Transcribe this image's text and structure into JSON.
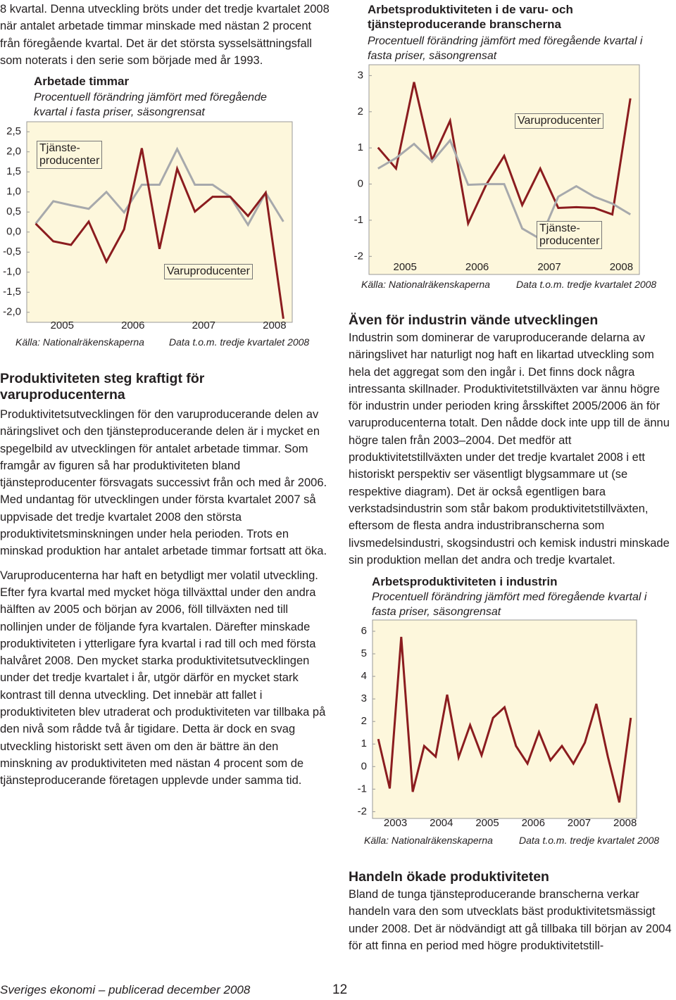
{
  "page": {
    "intro": "8 kvartal. Denna utveckling bröts under det tredje kvartalet 2008 när antalet arbetade timmar minskade med nästan 2 procent från föregående kvartal. Det är det största sysselsättningsfall som noterats i den serie som började med år 1993.",
    "sections": [
      {
        "heading": "Produktiviteten steg kraftigt för varuproducenterna",
        "paragraphs": [
          "Produktivitetsutvecklingen för den varuproducerande delen av näringslivet och den tjänsteproducerande delen är i mycket en spegelbild av utvecklingen för antalet arbetade timmar. Som framgår av figuren så har produktiviteten bland tjänsteproducenter försvagats successivt från och med år 2006. Med undantag för utvecklingen under första kvartalet 2007 så uppvisade det tredje kvartalet 2008 den största produktivitetsminskningen under hela perioden. Trots en minskad produktion har antalet arbetade timmar fortsatt att öka.",
          "Varuproducenterna har haft en betydligt mer volatil utveckling. Efter fyra kvartal med mycket höga tillväxttal under den andra hälften av 2005 och början av 2006, föll tillväxten ned till nollinjen under de följande fyra kvartalen. Därefter minskade produktiviteten i ytterligare fyra kvartal i rad till och med första halvåret 2008. Den mycket starka produktivitetsutvecklingen under det tredje kvartalet i år, utgör därför en mycket stark kontrast till denna utveckling. Det innebär att fallet i produktiviteten blev utraderat och produktiviteten var tillbaka på den nivå som rådde två år tigidare. Detta är dock en svag utveckling historiskt sett även om den är bättre än den minskning av produktiviteten med nästan 4 procent som de tjänsteproducerande företagen upplevde under samma tid."
        ]
      },
      {
        "heading": "Även för industrin vände utvecklingen",
        "paragraphs": [
          "Industrin som dominerar de varuproducerande delarna av näringslivet har naturligt nog haft en likartad utveckling som hela det aggregat som den ingår i. Det finns dock några intressanta skillnader. Produktivitetstillväxten var ännu högre för industrin under perioden kring årsskiftet 2005/2006 än för varuproducenterna totalt. Den nådde dock inte upp till de ännu högre talen från 2003–2004. Det medför att produktivitetstillväxten under det tredje kvartalet 2008 i ett historiskt perspektiv ser väsentligt blygsammare ut (se respektive diagram). Det är också egentligen bara verkstadsindustrin som står bakom produktivitetstillväxten, eftersom de flesta andra industribranscherna som livsmedelsindustri, skogsindustri och kemisk industri minskade sin produktion mellan det andra och tredje kvartalet."
        ]
      },
      {
        "heading": "Handeln ökade produktiviteten",
        "paragraphs": [
          "Bland de tunga tjänsteproducerande branscherna verkar handeln vara den som utvecklats bäst produktivitetsmässigt under 2008. Det är nödvändigt att gå tillbaka till början av 2004 för att finna en period med högre produktivitetstill-"
        ]
      }
    ],
    "footer": {
      "publication": "Sveriges ekonomi – publicerad december 2008",
      "page_number": "12"
    }
  },
  "chart_data": [
    {
      "type": "line",
      "title": "Arbetade timmar",
      "subtitle": "Procentuell förändring jämfört med föregående kvartal i fasta priser, säsongrensat",
      "source": "Källa: Nationalräkenskaperna",
      "note": "Data t.o.m. tredje kvartalet 2008",
      "categories": [
        null,
        "2005",
        null,
        null,
        null,
        "2006",
        null,
        null,
        null,
        "2007",
        null,
        null,
        null,
        "2008",
        null
      ],
      "series": [
        {
          "name": "Tjänste-\nproducenter",
          "color": "#a7a9ac",
          "values": [
            0.21,
            0.77,
            0.67,
            0.58,
            1.0,
            0.49,
            1.18,
            1.18,
            2.07,
            1.18,
            1.18,
            0.88,
            0.18,
            0.98,
            0.26
          ]
        },
        {
          "name": "Varuproducenter",
          "color": "#8b1c1f",
          "values": [
            0.21,
            -0.23,
            -0.32,
            0.26,
            -0.74,
            0.07,
            2.09,
            -0.42,
            1.58,
            0.51,
            0.88,
            0.88,
            0.4,
            0.98,
            -2.16
          ]
        }
      ],
      "ylim": [
        -2.25,
        2.75
      ],
      "yticks": [
        {
          "value": -2,
          "label": "-2,0"
        },
        {
          "value": -1.5,
          "label": "-1,5"
        },
        {
          "value": -1,
          "label": "-1,0"
        },
        {
          "value": -0.5,
          "label": "-0,5"
        },
        {
          "value": 0,
          "label": "0,0"
        },
        {
          "value": 0.5,
          "label": "0,5"
        },
        {
          "value": 1,
          "label": "1,0"
        },
        {
          "value": 1.5,
          "label": "1,5"
        },
        {
          "value": 2,
          "label": "2,0"
        },
        {
          "value": 2.5,
          "label": "2,5"
        }
      ]
    },
    {
      "type": "line",
      "title": "Arbetsproduktiviteten i de varu- och tjänsteproducerande branscherna",
      "subtitle": "Procentuell förändring jämfört med föregående kvartal i fasta priser, säsongrensat",
      "source": "Källa: Nationalräkenskaperna",
      "note": "Data t.o.m. tredje kvartalet 2008",
      "categories": [
        null,
        "2005",
        null,
        null,
        null,
        "2006",
        null,
        null,
        null,
        "2007",
        null,
        null,
        null,
        "2008",
        null
      ],
      "series": [
        {
          "name": "Varuproducenter",
          "color": "#8b1c1f",
          "values": [
            1.01,
            0.43,
            2.82,
            0.66,
            1.75,
            -1.09,
            -0.02,
            0.78,
            -0.58,
            0.43,
            -0.66,
            -0.64,
            -0.66,
            -0.84,
            2.37
          ]
        },
        {
          "name": "Tjänste-\nproducenter",
          "color": "#a7a9ac",
          "values": [
            0.43,
            0.72,
            1.11,
            0.62,
            1.21,
            -0.02,
            0,
            0,
            -1.23,
            -1.52,
            -0.35,
            -0.06,
            -0.35,
            -0.54,
            -0.84
          ]
        }
      ],
      "ylim": [
        -2.5,
        3.3
      ],
      "yticks": [
        -2,
        -1,
        0,
        1,
        2,
        3
      ]
    },
    {
      "type": "line",
      "title": "Arbetsproduktiviteten i industrin",
      "subtitle": "Procentuell förändring jämfört med föregående kvartal i fasta priser, säsongrensat",
      "source": "Källa: Nationalräkenskaperna",
      "note": "Data t.o.m. tredje kvartalet 2008",
      "categories": [
        null,
        "2003",
        null,
        null,
        null,
        "2004",
        null,
        null,
        null,
        "2005",
        null,
        null,
        null,
        "2006",
        null,
        null,
        null,
        "2007",
        null,
        null,
        null,
        "2008",
        null
      ],
      "series": [
        {
          "color": "#8b1c1f",
          "values": [
            1.22,
            -0.97,
            5.75,
            -1.12,
            0.91,
            0.44,
            3.19,
            0.41,
            1.84,
            0.5,
            2.16,
            2.63,
            0.91,
            0.13,
            1.53,
            0.28,
            0.91,
            0.13,
            1.06,
            2.78,
            0.44,
            -1.59,
            2.16
          ]
        }
      ],
      "ylim": [
        -2.3,
        6.5
      ],
      "yticks": [
        -2,
        -1,
        0,
        1,
        2,
        3,
        4,
        5,
        6
      ]
    }
  ]
}
